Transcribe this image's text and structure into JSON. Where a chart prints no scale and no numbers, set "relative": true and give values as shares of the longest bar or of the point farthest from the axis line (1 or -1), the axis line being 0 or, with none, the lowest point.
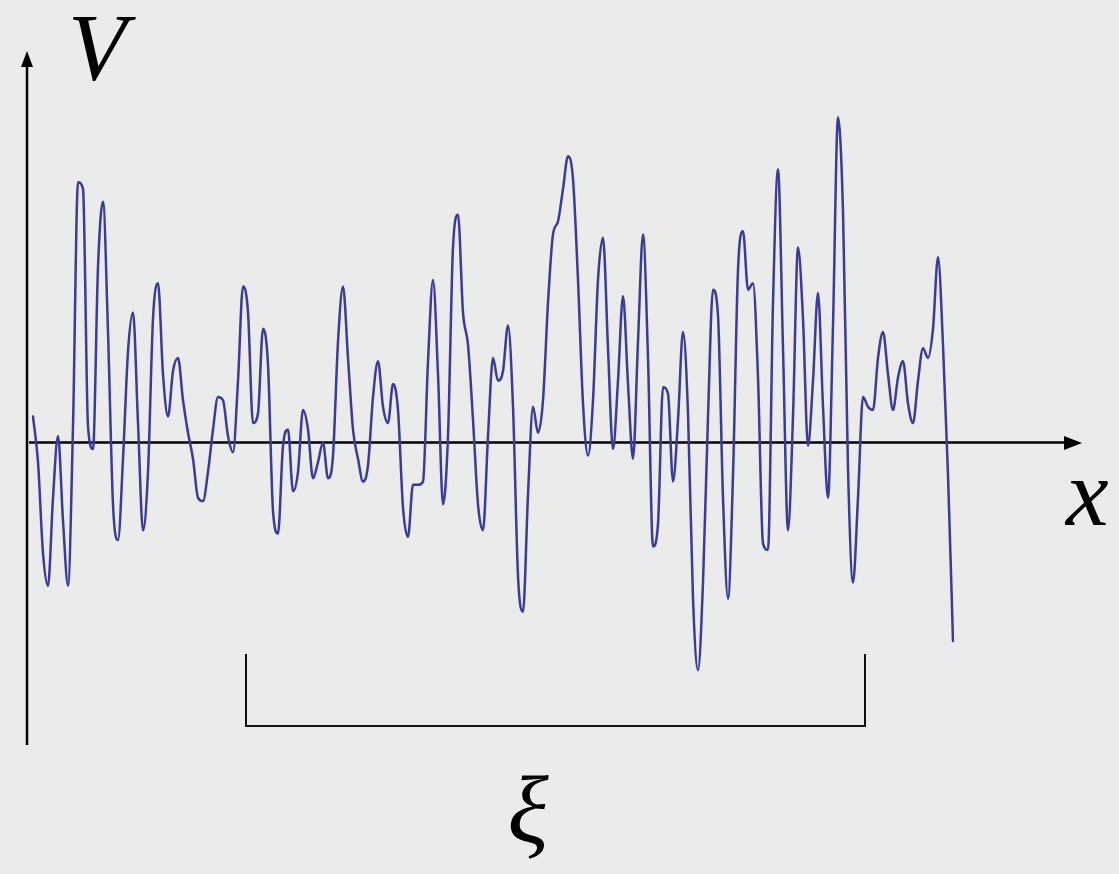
{
  "chart_data": {
    "type": "line",
    "xlabel": "x",
    "ylabel": "V",
    "annotations": [
      "ξ"
    ],
    "relative": true,
    "tick_labels": false,
    "color": "#3b3b9a",
    "categories": [
      null,
      null,
      null,
      null,
      null,
      null,
      null,
      null,
      null,
      null,
      null,
      null,
      null,
      null,
      null,
      null,
      null,
      null,
      null,
      null,
      null,
      null,
      null,
      null,
      null,
      null,
      null,
      null,
      null,
      null,
      null,
      null,
      null,
      null,
      null,
      null,
      null,
      null,
      null,
      null,
      null,
      null,
      null,
      null,
      null,
      null,
      null,
      null,
      null,
      null,
      null,
      null,
      null,
      null,
      null,
      null,
      null,
      null,
      null,
      null,
      null,
      null,
      null,
      null,
      null,
      null,
      null,
      null,
      null,
      null,
      null,
      null,
      null,
      null,
      null,
      null,
      null,
      null,
      null,
      null,
      null,
      null,
      null,
      null,
      null,
      null,
      null,
      null,
      null,
      null,
      null,
      null,
      null,
      null,
      null,
      null,
      null,
      null,
      null,
      null,
      null,
      null,
      null,
      null,
      null,
      null,
      null,
      null,
      null,
      null,
      null,
      null,
      null,
      null,
      null,
      null,
      null,
      null,
      null,
      null,
      null,
      null,
      null,
      null,
      null,
      null,
      null,
      null,
      null,
      null,
      null,
      null,
      null,
      null,
      null,
      null,
      null,
      null,
      null,
      null,
      null,
      null,
      null,
      null,
      null,
      null,
      null,
      null,
      null,
      null,
      null,
      null,
      null,
      null,
      null,
      null,
      null,
      null,
      null,
      null,
      null,
      null,
      null,
      null,
      null,
      null,
      null,
      null,
      null,
      null,
      null,
      null,
      null,
      null,
      null,
      null,
      null,
      null,
      null,
      null,
      null,
      null,
      null,
      null,
      null
    ],
    "values": [
      0.08,
      -0.06,
      -0.34,
      -0.44,
      -0.17,
      0.02,
      -0.24,
      -0.44,
      0.05,
      0.8,
      0.78,
      0.05,
      -0.02,
      0.54,
      0.74,
      0.34,
      -0.19,
      -0.3,
      -0.05,
      0.28,
      0.4,
      0.06,
      -0.27,
      -0.09,
      0.38,
      0.49,
      0.21,
      0.08,
      0.22,
      0.26,
      0.13,
      0.03,
      -0.05,
      -0.17,
      -0.18,
      -0.09,
      0.04,
      0.14,
      0.13,
      0.02,
      -0.03,
      0.19,
      0.48,
      0.4,
      0.06,
      0.09,
      0.35,
      0.24,
      -0.21,
      -0.28,
      -0.01,
      0.04,
      -0.15,
      -0.09,
      0.1,
      0.04,
      -0.11,
      -0.06,
      0.0,
      -0.11,
      -0.04,
      0.31,
      0.48,
      0.26,
      0.04,
      -0.05,
      -0.12,
      -0.07,
      0.14,
      0.25,
      0.11,
      0.06,
      0.18,
      0.1,
      -0.2,
      -0.29,
      -0.13,
      -0.13,
      -0.12,
      0.25,
      0.5,
      0.21,
      -0.19,
      0.02,
      0.6,
      0.7,
      0.4,
      0.3,
      0.07,
      -0.19,
      -0.27,
      0.02,
      0.26,
      0.19,
      0.22,
      0.36,
      0.11,
      -0.41,
      -0.52,
      -0.16,
      0.11,
      0.03,
      0.13,
      0.43,
      0.64,
      0.68,
      0.78,
      0.88,
      0.81,
      0.5,
      0.12,
      -0.04,
      0.13,
      0.5,
      0.63,
      0.29,
      -0.02,
      0.19,
      0.45,
      0.18,
      -0.05,
      0.31,
      0.64,
      0.26,
      -0.32,
      -0.25,
      0.17,
      0.15,
      -0.12,
      0.07,
      0.34,
      0.09,
      -0.48,
      -0.7,
      -0.43,
      0.08,
      0.47,
      0.39,
      -0.17,
      -0.48,
      -0.1,
      0.53,
      0.65,
      0.47,
      0.49,
      0.2,
      -0.31,
      -0.33,
      0.43,
      0.84,
      0.29,
      -0.27,
      0.08,
      0.6,
      0.38,
      -0.01,
      0.19,
      0.46,
      0.11,
      -0.17,
      0.36,
      1.0,
      0.71,
      -0.08,
      -0.43,
      -0.17,
      0.14,
      0.11,
      0.1,
      0.26,
      0.34,
      0.21,
      0.1,
      0.2,
      0.25,
      0.12,
      0.06,
      0.19,
      0.29,
      0.26,
      0.35,
      0.57,
      0.3,
      -0.1,
      -0.61
    ]
  }
}
